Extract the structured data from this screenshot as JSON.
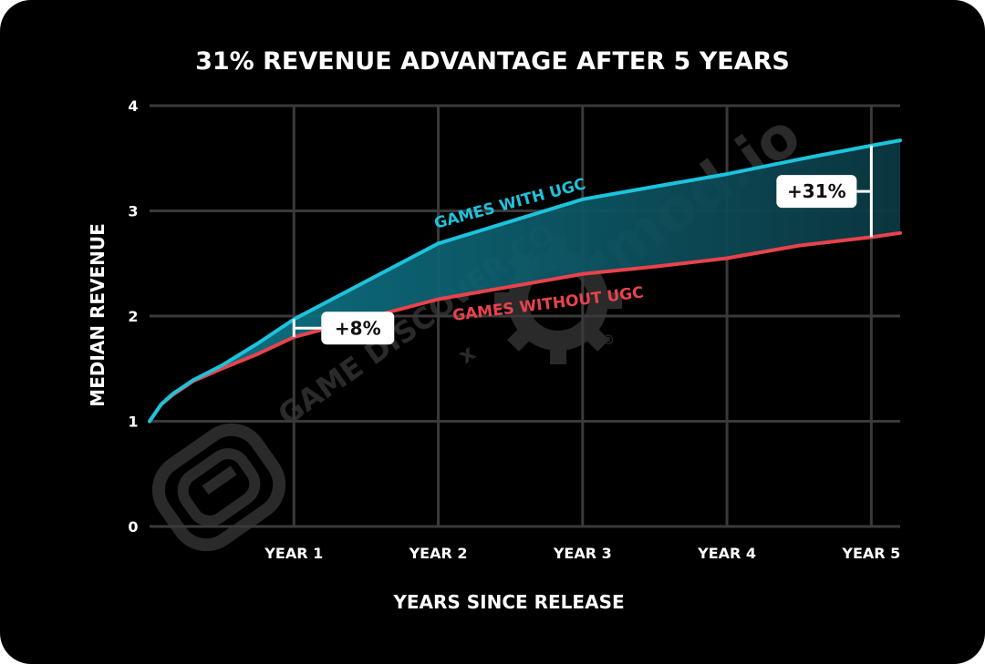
{
  "colors": {
    "background": "#000000",
    "grid": "#3a3a3a",
    "with_ugc": "#1cc3dc",
    "without_ugc": "#e8434c",
    "text": "#ffffff",
    "callout_bg": "#ffffff"
  },
  "watermark": {
    "brand_text": "GAME DISCOVER CO",
    "separator": "x",
    "partner_text": "mod.io",
    "registered": "®"
  },
  "chart_data": {
    "type": "line",
    "title": "31% REVENUE ADVANTAGE AFTER 5 YEARS",
    "xlabel": "YEARS SINCE RELEASE",
    "ylabel": "MEDIAN REVENUE",
    "x_range": [
      0,
      5.2
    ],
    "ylim": [
      0,
      4
    ],
    "y_ticks": [
      "0",
      "1",
      "2",
      "3",
      "4"
    ],
    "x_ticks": [
      "YEAR 1",
      "YEAR 2",
      "YEAR 3",
      "YEAR 4",
      "YEAR 5"
    ],
    "grid": true,
    "series": [
      {
        "name": "GAMES WITH UGC",
        "color": "#1cc3dc",
        "x": [
          0,
          0.08,
          0.16,
          0.3,
          0.5,
          0.75,
          1.0,
          1.5,
          2.0,
          2.5,
          3.0,
          3.5,
          4.0,
          4.5,
          5.0,
          5.2
        ],
        "y": [
          1.0,
          1.16,
          1.26,
          1.39,
          1.53,
          1.74,
          1.97,
          2.33,
          2.69,
          2.9,
          3.11,
          3.23,
          3.35,
          3.49,
          3.62,
          3.67
        ]
      },
      {
        "name": "GAMES WITHOUT UGC",
        "color": "#e8434c",
        "x": [
          0,
          0.08,
          0.16,
          0.3,
          0.5,
          0.75,
          1.0,
          1.5,
          2.0,
          2.5,
          3.0,
          3.5,
          4.0,
          4.5,
          5.0,
          5.2
        ],
        "y": [
          1.0,
          1.16,
          1.25,
          1.38,
          1.5,
          1.64,
          1.8,
          1.98,
          2.16,
          2.28,
          2.4,
          2.47,
          2.55,
          2.67,
          2.75,
          2.79
        ]
      }
    ],
    "annotations": [
      {
        "text": "+8%",
        "at_x": 1.0
      },
      {
        "text": "+31%",
        "at_x": 5.0
      }
    ]
  }
}
